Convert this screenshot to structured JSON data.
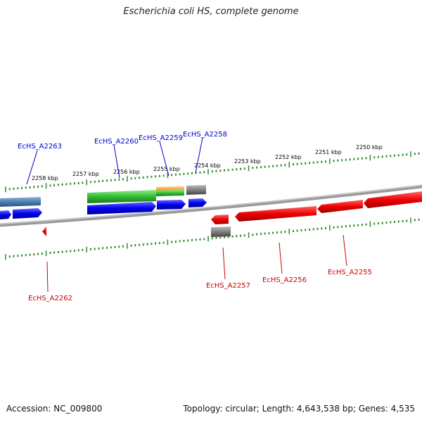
{
  "title": "Escherichia coli HS, complete genome",
  "footer": {
    "accession": "Accession: NC_009800",
    "summary": "Topology: circular; Length: 4,643,538 bp; Genes: 4,535"
  },
  "scale_labels": [
    "2258 kbp",
    "2257 kbp",
    "2256 kbp",
    "2255 kbp",
    "2254 kbp",
    "2253 kbp",
    "2252 kbp",
    "2251 kbp",
    "2250 kbp"
  ],
  "forward_genes": [
    "EcHS_A2263",
    "EcHS_A2260",
    "EcHS_A2259",
    "EcHS_A2258"
  ],
  "reverse_genes": [
    "EcHS_A2262",
    "EcHS_A2257",
    "EcHS_A2256",
    "EcHS_A2255"
  ],
  "colors": {
    "forward_label": "#0000cc",
    "reverse_label": "#cc0000",
    "tick": "#2e8b2e",
    "backbone": "#808080",
    "cds_forward": "#0000ee",
    "cds_reverse": "#ee0000",
    "gene_forward": "#4a7fb5",
    "gene_green": "#33bb33",
    "gene_orange": "#ee9922",
    "gene_grey": "#808080"
  }
}
